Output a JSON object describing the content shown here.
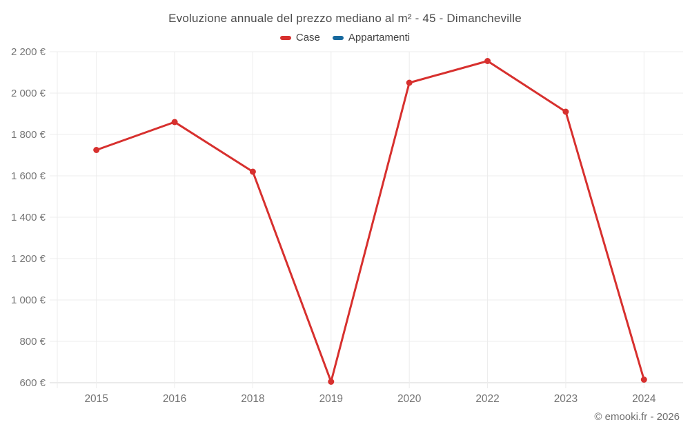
{
  "header": {
    "title": "Evoluzione annuale del prezzo mediano al m² - 45 - Dimancheville"
  },
  "footer": {
    "credit": "© emooki.fr - 2026"
  },
  "chart_data": {
    "type": "line",
    "title": "Evoluzione annuale del prezzo mediano al m² - 45 - Dimancheville",
    "categories": [
      "2015",
      "2016",
      "2018",
      "2019",
      "2020",
      "2022",
      "2023",
      "2024"
    ],
    "series": [
      {
        "name": "Case",
        "color": "#d7302e",
        "values": [
          1725,
          1860,
          1620,
          605,
          2050,
          2155,
          1910,
          615
        ]
      },
      {
        "name": "Appartamenti",
        "color": "#17699e",
        "values": [
          null,
          null,
          null,
          null,
          null,
          null,
          null,
          null
        ]
      }
    ],
    "xlabel": "",
    "ylabel": "",
    "ylim": [
      600,
      2200
    ],
    "yticks": [
      600,
      800,
      1000,
      1200,
      1400,
      1600,
      1800,
      2000,
      2200
    ],
    "yticklabels": [
      "600 €",
      "800 €",
      "1 000 €",
      "1 200 €",
      "1 400 €",
      "1 600 €",
      "1 800 €",
      "2 000 €",
      "2 200 €"
    ],
    "grid": true,
    "legend_position": "top",
    "marker": "circle"
  },
  "style": {
    "grid_color": "#ececec",
    "axis_color": "#d6d6d6",
    "tick_label_color": "#757575",
    "background": "#ffffff"
  }
}
